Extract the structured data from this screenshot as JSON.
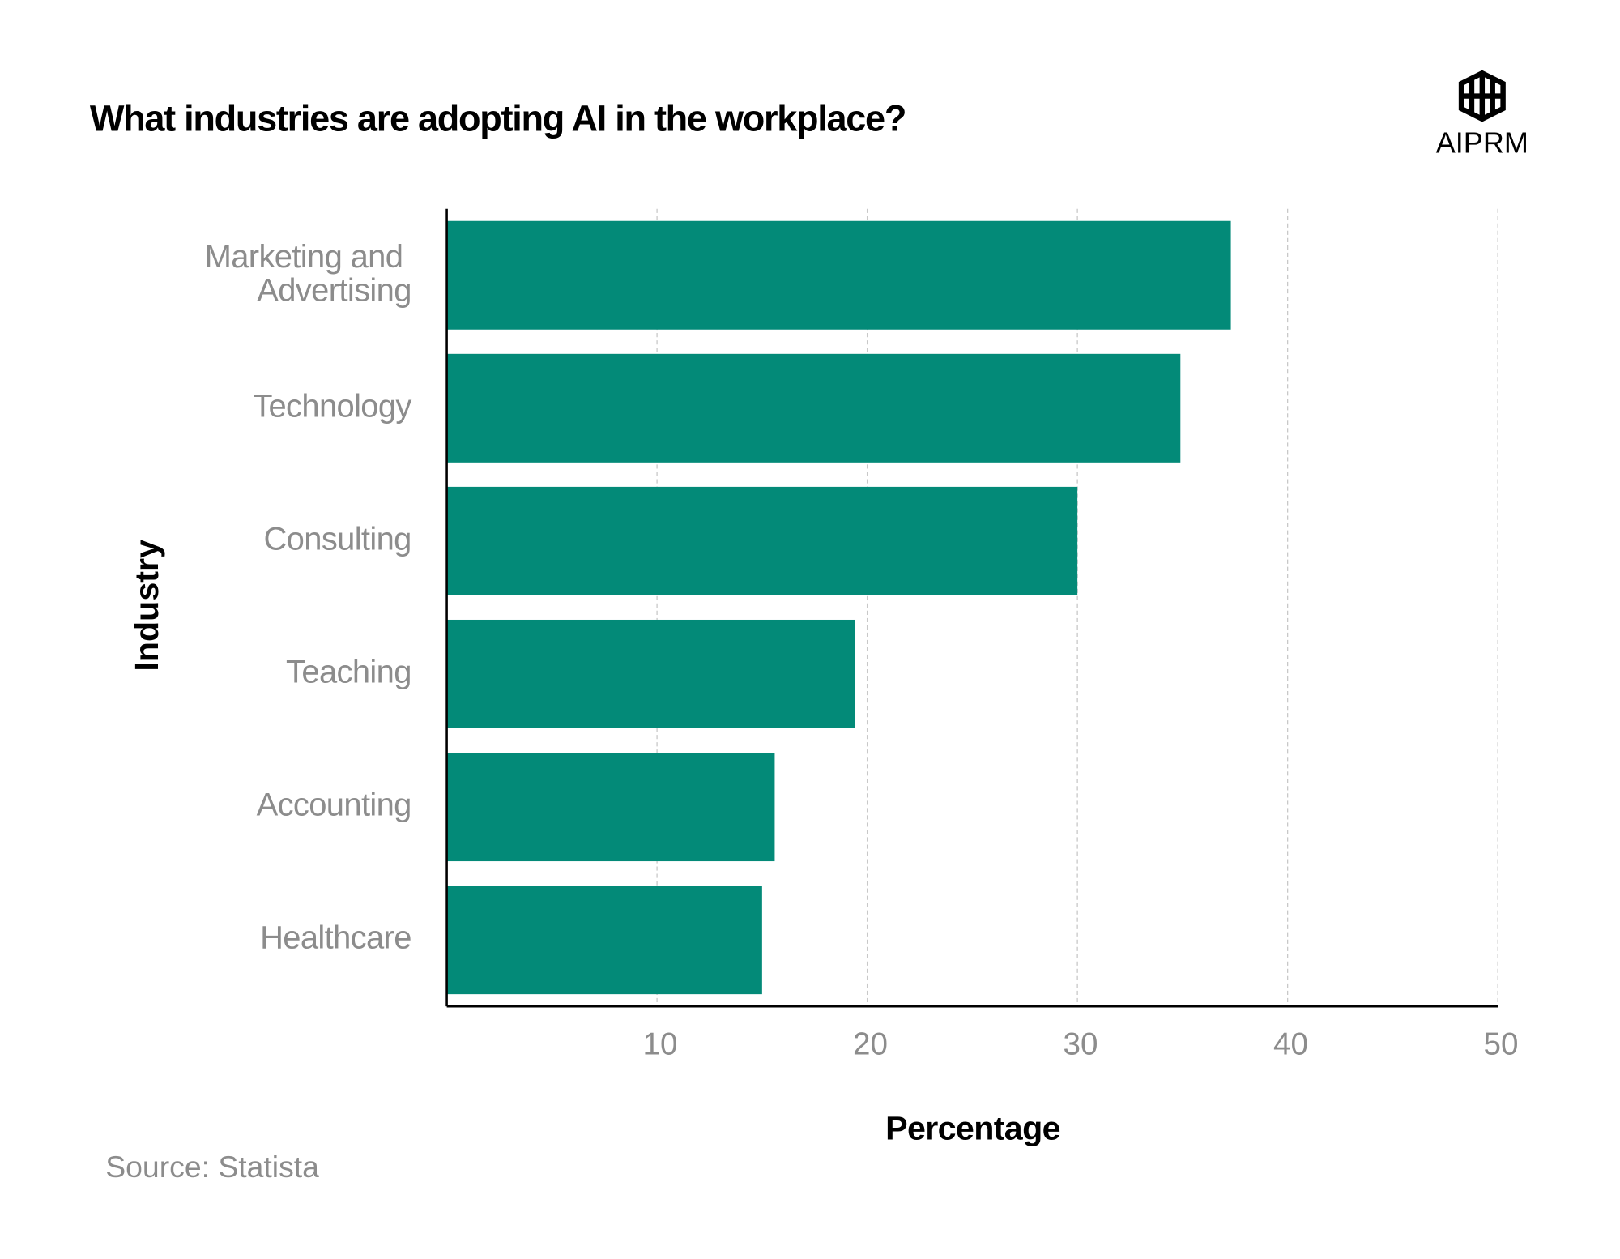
{
  "chart_data": {
    "type": "bar",
    "orientation": "horizontal",
    "title": "What industries are adopting AI in the workplace?",
    "logo": "AIPRM",
    "source": "Source: Statista",
    "x_label": "Percentage",
    "y_label": "Industry",
    "categories": [
      "Marketing and Advertising",
      "Technology",
      "Consulting",
      "Teaching",
      "Accounting",
      "Healthcare"
    ],
    "values": [
      37.3,
      34.9,
      30.0,
      19.4,
      15.6,
      15.0
    ],
    "color": "#038a78",
    "xlim": [
      0,
      50
    ],
    "xticks": [
      10,
      20,
      30,
      40,
      50
    ],
    "grid": true
  }
}
